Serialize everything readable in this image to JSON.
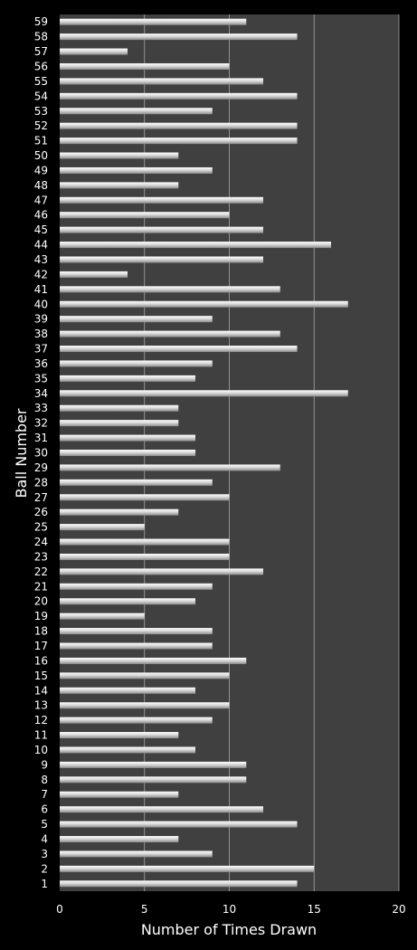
{
  "chart_data": {
    "type": "bar",
    "orientation": "horizontal",
    "xlabel": "Number of Times Drawn",
    "ylabel": "Ball Number",
    "xlim": [
      0,
      20
    ],
    "x_ticks": [
      0,
      5,
      10,
      15,
      20
    ],
    "grid": "vertical",
    "colors": {
      "figure_background": "#000000",
      "plot_background": "#404040",
      "gridline": "#a6a6a6",
      "bar_light": "#ffffff",
      "bar_mid": "#d9d9d9",
      "bar_dark": "#8c8c8c",
      "text": "#ffffff"
    },
    "categories": [
      "1",
      "2",
      "3",
      "4",
      "5",
      "6",
      "7",
      "8",
      "9",
      "10",
      "11",
      "12",
      "13",
      "14",
      "15",
      "16",
      "17",
      "18",
      "19",
      "20",
      "21",
      "22",
      "23",
      "24",
      "25",
      "26",
      "27",
      "28",
      "29",
      "30",
      "31",
      "32",
      "33",
      "34",
      "35",
      "36",
      "37",
      "38",
      "39",
      "40",
      "41",
      "42",
      "43",
      "44",
      "45",
      "46",
      "47",
      "48",
      "49",
      "50",
      "51",
      "52",
      "53",
      "54",
      "55",
      "56",
      "57",
      "58",
      "59"
    ],
    "values": [
      14,
      15,
      9,
      7,
      14,
      12,
      7,
      11,
      11,
      8,
      7,
      9,
      10,
      8,
      10,
      11,
      9,
      9,
      5,
      8,
      9,
      12,
      10,
      10,
      5,
      7,
      10,
      9,
      13,
      8,
      8,
      7,
      7,
      17,
      8,
      9,
      14,
      13,
      9,
      17,
      13,
      4,
      12,
      16,
      12,
      10,
      12,
      7,
      9,
      7,
      14,
      14,
      9,
      14,
      12,
      10,
      4,
      14,
      11
    ]
  }
}
